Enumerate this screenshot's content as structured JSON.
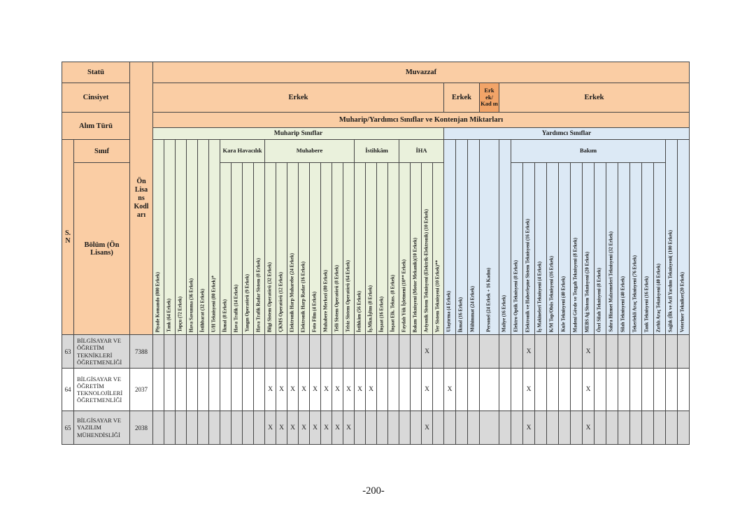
{
  "page_number": "-200-",
  "colors": {
    "header_orange": "#FACDA4",
    "header_orange_dark": "#F2A468",
    "muharip_green": "#EAF1DC",
    "yardimci_blue": "#DCE9F5",
    "row_gray": "#D9D9D9"
  },
  "table": {
    "mark": "X",
    "corner": {
      "statu": "Statü",
      "cinsiyet": "Cinsiyet",
      "alim_turu": "Alım Türü",
      "sinif": "Sınıf",
      "sn": "S. N",
      "bolum": "Bölüm (Ön Lisans)",
      "on_lisans_kodlari": "Ön Lisans Kodları"
    },
    "top": {
      "muvazzaf": "Muvazzaf",
      "alim_row": "Muharip/Yardımcı Sınıflar ve Kontenjan Miktarları",
      "gender_cells": [
        {
          "label": "Erkek",
          "span": 26,
          "tone": "orange"
        },
        {
          "label": "Erkek",
          "span": 3,
          "tone": "orange"
        },
        {
          "label": "Erk ek/ Kad ın",
          "span": 1,
          "tone": "dorange"
        },
        {
          "label": "Erkek",
          "span": 16,
          "tone": "orange"
        }
      ],
      "sections": [
        {
          "label": "Muharip Sınıflar",
          "span": 26,
          "tone": "green"
        },
        {
          "label": "Yardımcı Sınıflar",
          "span": 20,
          "tone": "blue"
        }
      ]
    },
    "columns": [
      {
        "label": "Piyade Komando (800 Erkek)",
        "section": "muharip",
        "group": null
      },
      {
        "label": "Tank (64 Erkek)",
        "section": "muharip",
        "group": null
      },
      {
        "label": "Topçu (72 Erkek)",
        "section": "muharip",
        "group": null
      },
      {
        "label": "Hava Savunma (36 Erkek)",
        "section": "muharip",
        "group": null
      },
      {
        "label": "İstihbarat (32 Erkek)",
        "section": "muharip",
        "group": null
      },
      {
        "label": "U/H Teknisyeni (80 Erkek)*",
        "section": "muharip",
        "group": null
      },
      {
        "label": "İkmal (8 Erkek)",
        "section": "muharip",
        "group": "Kara Havacılık"
      },
      {
        "label": "Hava Trafik (14 Erkek)",
        "section": "muharip",
        "group": "Kara Havacılık"
      },
      {
        "label": "Yangın Operatörü (9 Erkek)",
        "section": "muharip",
        "group": "Kara Havacılık"
      },
      {
        "label": "Hava Trafik Radar Sistem (8 Erkek)",
        "section": "muharip",
        "group": "Kara Havacılık"
      },
      {
        "label": "Bilgi Sistem Operatörü (32 Erkek)",
        "section": "muharip",
        "group": "Muhabere"
      },
      {
        "label": "ÇKMS Operatörü (12 Erkek)",
        "section": "muharip",
        "group": "Muhabere"
      },
      {
        "label": "Elektronik Harp Muharebe (24 Erkek)",
        "section": "muharip",
        "group": "Muhabere"
      },
      {
        "label": "Elektronik Harp Radar (16 Erkek)",
        "section": "muharip",
        "group": "Muhabere"
      },
      {
        "label": "Foto Film (4 Erkek)",
        "section": "muharip",
        "group": "Muhabere"
      },
      {
        "label": "Muhabere Merkezi (80 Erkek)",
        "section": "muharip",
        "group": "Muhabere"
      },
      {
        "label": "Telli Sistem Operatörü (8 Erkek)",
        "section": "muharip",
        "group": "Muhabere"
      },
      {
        "label": "Telsiz Sistem Operatörü (64 Erkek)",
        "section": "muharip",
        "group": "Muhabere"
      },
      {
        "label": "İstihkâm (56 Erkek)",
        "section": "muharip",
        "group": "İstihkâm"
      },
      {
        "label": "İş.Mkn.İşltm (8 Erkek)",
        "section": "muharip",
        "group": "İstihkâm"
      },
      {
        "label": "İnşaat (16 Erkek)",
        "section": "muharip",
        "group": "İstihkâm"
      },
      {
        "label": "İnşaat Elk. Tekns. (8 Erkek)",
        "section": "muharip",
        "group": "İstihkâm"
      },
      {
        "label": "Faydalı Yük İşletmeni (10** Erkek)",
        "section": "muharip",
        "group": "İHA"
      },
      {
        "label": "Bakım Teknisyeni (Motor Mekanik)(10 Erkek)",
        "section": "muharip",
        "group": "İHA"
      },
      {
        "label": "Aviyonik Sistem Teknisyeni (Elektrik-Elektronik) (10 Erkek)",
        "section": "muharip",
        "group": "İHA"
      },
      {
        "label": "Yer Sistem Teknisyeni (10 Erkek)**",
        "section": "muharip",
        "group": "İHA"
      },
      {
        "label": "Ulaştırma (4 Erkek)",
        "section": "yardimci",
        "group": null
      },
      {
        "label": "İkmal (16 Erkek)",
        "section": "yardimci",
        "group": null
      },
      {
        "label": "Mühimmat (24 Erkek)",
        "section": "yardimci",
        "group": null
      },
      {
        "label": "Personel (24 Erkek + 16 Kadın)",
        "section": "yardimci",
        "group": null,
        "wide": true
      },
      {
        "label": "Maliye (16 Erkek)",
        "section": "yardimci",
        "group": null
      },
      {
        "label": "Elektro Optik Teknisyeni (8 Erkek)",
        "section": "yardimci",
        "group": "Bakım"
      },
      {
        "label": "Elektronik ve Haberleşme Sistem Teknisyeni (16 Erkek)",
        "section": "yardimci",
        "group": "Bakım"
      },
      {
        "label": "İş Makineleri Teknisyeni (4 Erkek)",
        "section": "yardimci",
        "group": "Bakım"
      },
      {
        "label": "K/M Top/Obüs Teknisyeni (16 Erkek)",
        "section": "yardimci",
        "group": "Bakım"
      },
      {
        "label": "Kule Teknisyeni (40 Erkek)",
        "section": "yardimci",
        "group": "Bakım"
      },
      {
        "label": "Madeni Gövde ve Tezgah Teknisyeni (8 Erkek)",
        "section": "yardimci",
        "group": "Bakım"
      },
      {
        "label": "MEBS Ağ Sistem Teknisyeni (20 Erkek)",
        "section": "yardimci",
        "group": "Bakım"
      },
      {
        "label": "Özel Silah Teknisyeni (8 Erkek)",
        "section": "yardimci",
        "group": "Bakım"
      },
      {
        "label": "Sahra Hizmet Malzemeleri Teknisyeni (32 Erkek)",
        "section": "yardimci",
        "group": "Bakım"
      },
      {
        "label": "Silah Teknisyeni (40 Erkek)",
        "section": "yardimci",
        "group": "Bakım"
      },
      {
        "label": "Tekerlekli Araç Teknisyeni (76 Erkek)",
        "section": "yardimci",
        "group": "Bakım"
      },
      {
        "label": "Tank Teknisyeni (16 Erkek)",
        "section": "yardimci",
        "group": "Bakım"
      },
      {
        "label": "Zırhlı Araç Teknisyeni (40 Erkek)",
        "section": "yardimci",
        "group": "Bakım"
      },
      {
        "label": "Sağlık (İlk ve Acil Yardım Teknisyeni( (100 Erkek)",
        "section": "yardimci",
        "group": null
      },
      {
        "label": "Veteriner Tekniker(20 Erkek)",
        "section": "yardimci",
        "group": null
      }
    ],
    "rows": [
      {
        "sn": "63",
        "department": "BİLGİSAYAR VE ÖĞRETİM TEKNİKLERİ ÖĞRETMENLİĞİ",
        "code": "7388",
        "x_columns": [
          24,
          32,
          37
        ]
      },
      {
        "sn": "64",
        "department": "BİLGİSAYAR VE ÖĞRETİM TEKNOLOJİLERİ ÖĞRETMENLİĞİ",
        "code": "2037",
        "x_columns": [
          10,
          11,
          12,
          13,
          14,
          15,
          16,
          17,
          18,
          19,
          24,
          26,
          32,
          37
        ]
      },
      {
        "sn": "65",
        "department": "BİLGİSAYAR VE YAZILIM MÜHENDİSLİĞİ",
        "code": "2038",
        "x_columns": [
          10,
          11,
          12,
          13,
          14,
          15,
          16,
          17,
          24,
          32,
          37
        ]
      }
    ]
  }
}
